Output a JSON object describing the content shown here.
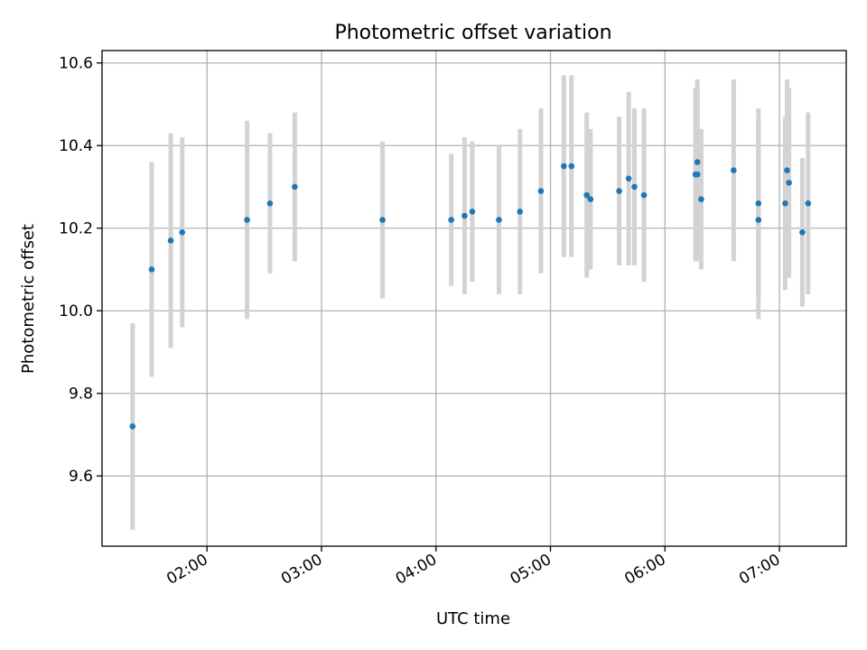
{
  "chart_data": {
    "type": "scatter",
    "title": "Photometric offset variation",
    "xlabel": "UTC time",
    "ylabel": "Photometric offset",
    "x_ticks": [
      "02:00",
      "03:00",
      "04:00",
      "05:00",
      "06:00",
      "07:00"
    ],
    "x_tick_hours": [
      2,
      3,
      4,
      5,
      6,
      7
    ],
    "y_ticks": [
      9.6,
      9.8,
      10.0,
      10.2,
      10.4,
      10.6
    ],
    "y_tick_labels": [
      "9.6",
      "9.8",
      "10.0",
      "10.2",
      "10.4",
      "10.6"
    ],
    "xlim": [
      "01:05",
      "07:35"
    ],
    "ylim": [
      9.43,
      10.63
    ],
    "grid": true,
    "colors": {
      "point": "#1f77b4",
      "errorbar": "#d3d3d3",
      "grid": "#b0b0b0",
      "axes": "#000000"
    },
    "series": [
      {
        "points": [
          {
            "x": "01:21",
            "y": 9.72,
            "err": 0.25
          },
          {
            "x": "01:31",
            "y": 10.1,
            "err": 0.26
          },
          {
            "x": "01:41",
            "y": 10.17,
            "err": 0.26
          },
          {
            "x": "01:47",
            "y": 10.19,
            "err": 0.23
          },
          {
            "x": "02:21",
            "y": 10.22,
            "err": 0.24
          },
          {
            "x": "02:33",
            "y": 10.26,
            "err": 0.17
          },
          {
            "x": "02:46",
            "y": 10.3,
            "err": 0.18
          },
          {
            "x": "03:32",
            "y": 10.22,
            "err": 0.19
          },
          {
            "x": "04:08",
            "y": 10.22,
            "err": 0.16
          },
          {
            "x": "04:15",
            "y": 10.23,
            "err": 0.19
          },
          {
            "x": "04:19",
            "y": 10.24,
            "err": 0.17
          },
          {
            "x": "04:33",
            "y": 10.22,
            "err": 0.18
          },
          {
            "x": "04:44",
            "y": 10.24,
            "err": 0.2
          },
          {
            "x": "04:55",
            "y": 10.29,
            "err": 0.2
          },
          {
            "x": "05:07",
            "y": 10.35,
            "err": 0.22
          },
          {
            "x": "05:11",
            "y": 10.35,
            "err": 0.22
          },
          {
            "x": "05:19",
            "y": 10.28,
            "err": 0.2
          },
          {
            "x": "05:21",
            "y": 10.27,
            "err": 0.17
          },
          {
            "x": "05:36",
            "y": 10.29,
            "err": 0.18
          },
          {
            "x": "05:41",
            "y": 10.32,
            "err": 0.21
          },
          {
            "x": "05:44",
            "y": 10.3,
            "err": 0.19
          },
          {
            "x": "05:49",
            "y": 10.28,
            "err": 0.21
          },
          {
            "x": "06:16",
            "y": 10.33,
            "err": 0.21
          },
          {
            "x": "06:17",
            "y": 10.36,
            "err": 0.2
          },
          {
            "x": "06:17",
            "y": 10.33,
            "err": 0.21
          },
          {
            "x": "06:19",
            "y": 10.27,
            "err": 0.17
          },
          {
            "x": "06:36",
            "y": 10.34,
            "err": 0.22
          },
          {
            "x": "06:49",
            "y": 10.22,
            "err": 0.24
          },
          {
            "x": "06:49",
            "y": 10.26,
            "err": 0.23
          },
          {
            "x": "07:03",
            "y": 10.26,
            "err": 0.21
          },
          {
            "x": "07:04",
            "y": 10.34,
            "err": 0.22
          },
          {
            "x": "07:05",
            "y": 10.31,
            "err": 0.23
          },
          {
            "x": "07:12",
            "y": 10.19,
            "err": 0.18
          },
          {
            "x": "07:15",
            "y": 10.26,
            "err": 0.22
          }
        ]
      }
    ]
  }
}
